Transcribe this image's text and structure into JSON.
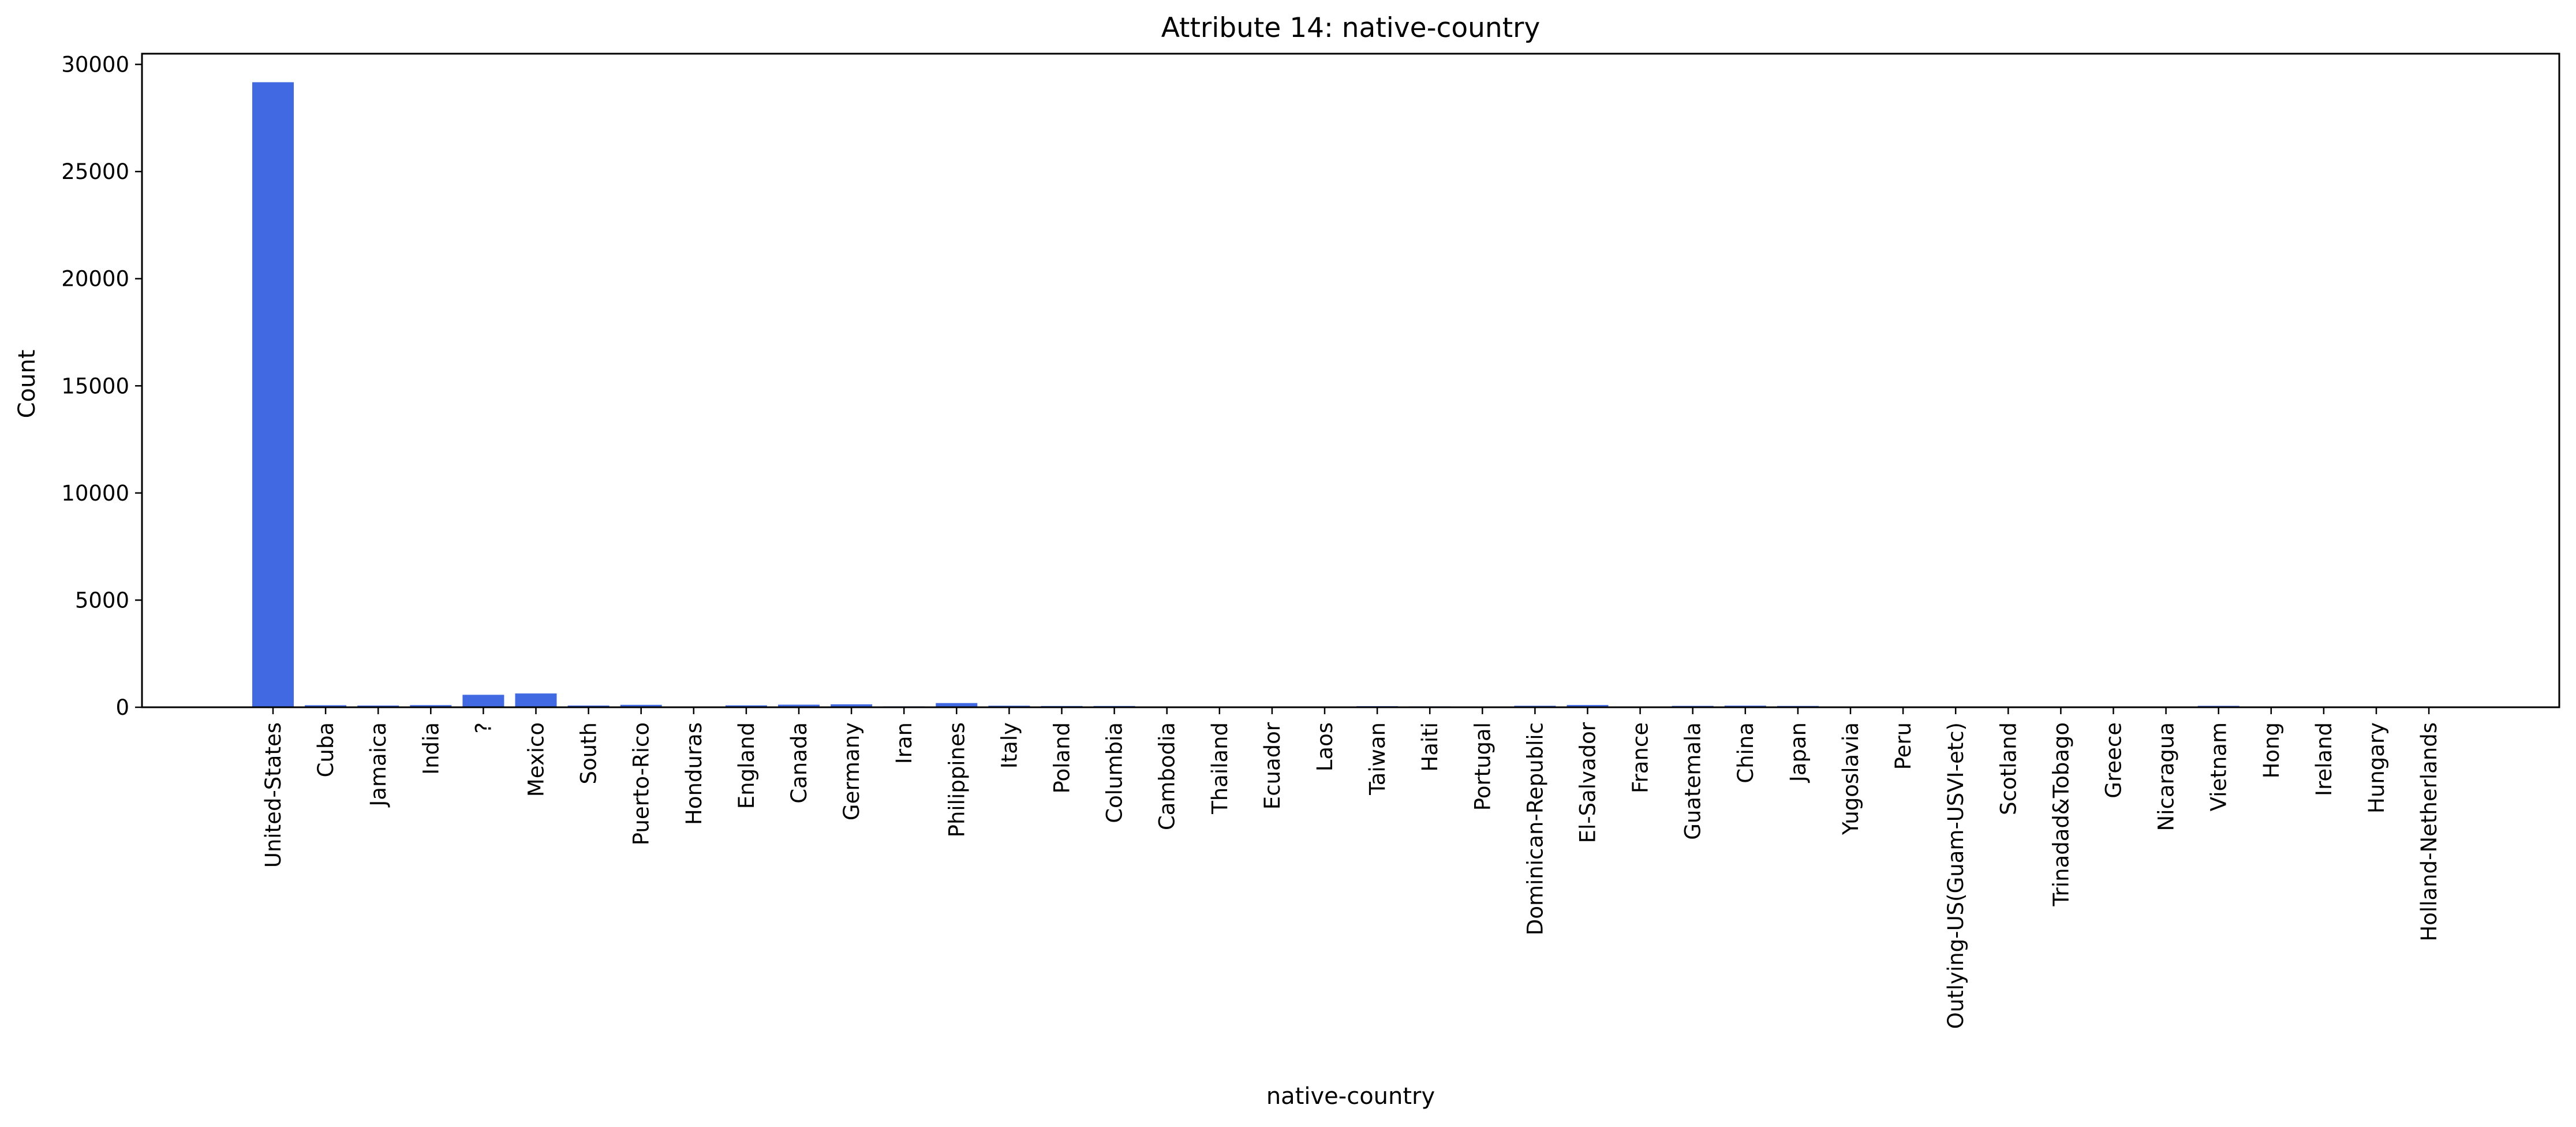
{
  "chart_data": {
    "type": "bar",
    "title": "Attribute 14: native-country",
    "xlabel": "native-country",
    "ylabel": "Count",
    "ylim": [
      0,
      30500
    ],
    "yticks": [
      0,
      5000,
      10000,
      15000,
      20000,
      25000,
      30000
    ],
    "grid": false,
    "bar_color": "#4169e1",
    "categories": [
      "United-States",
      "Cuba",
      "Jamaica",
      "India",
      "?",
      "Mexico",
      "South",
      "Puerto-Rico",
      "Honduras",
      "England",
      "Canada",
      "Germany",
      "Iran",
      "Philippines",
      "Italy",
      "Poland",
      "Columbia",
      "Cambodia",
      "Thailand",
      "Ecuador",
      "Laos",
      "Taiwan",
      "Haiti",
      "Portugal",
      "Dominican-Republic",
      "El-Salvador",
      "France",
      "Guatemala",
      "China",
      "Japan",
      "Yugoslavia",
      "Peru",
      "Outlying-US(Guam-USVI-etc)",
      "Scotland",
      "Trinadad&Tobago",
      "Greece",
      "Nicaragua",
      "Vietnam",
      "Hong",
      "Ireland",
      "Hungary",
      "Holland-Netherlands"
    ],
    "values": [
      29170,
      95,
      81,
      100,
      583,
      643,
      80,
      114,
      13,
      90,
      121,
      137,
      43,
      198,
      73,
      60,
      59,
      19,
      18,
      28,
      18,
      51,
      44,
      37,
      70,
      106,
      29,
      64,
      75,
      62,
      16,
      31,
      14,
      12,
      19,
      29,
      34,
      67,
      20,
      24,
      13,
      1
    ]
  }
}
